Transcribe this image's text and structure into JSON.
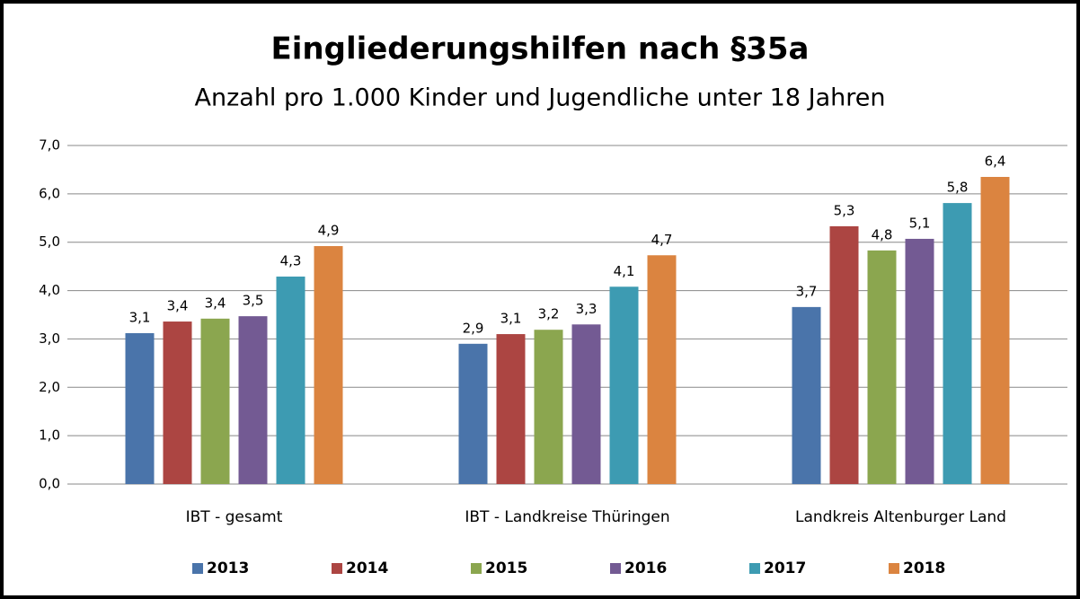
{
  "chart_data": {
    "type": "bar",
    "title": "Eingliederungshilfen nach §35a",
    "subtitle": "Anzahl pro 1.000 Kinder und Jugendliche unter 18 Jahren",
    "categories": [
      "IBT - gesamt",
      "IBT - Landkreise Thüringen",
      "Landkreis Altenburger Land"
    ],
    "series": [
      {
        "name": "2013",
        "color": "#4a74aa",
        "values": [
          3.12,
          2.9,
          3.66
        ],
        "value_labels": [
          "3,1",
          "2,9",
          "3,7"
        ]
      },
      {
        "name": "2014",
        "color": "#ac4542",
        "values": [
          3.36,
          3.1,
          5.33
        ],
        "value_labels": [
          "3,4",
          "3,1",
          "5,3"
        ]
      },
      {
        "name": "2015",
        "color": "#8ba64f",
        "values": [
          3.42,
          3.19,
          4.83
        ],
        "value_labels": [
          "3,4",
          "3,2",
          "4,8"
        ]
      },
      {
        "name": "2016",
        "color": "#735a93",
        "values": [
          3.47,
          3.3,
          5.07
        ],
        "value_labels": [
          "3,5",
          "3,3",
          "5,1"
        ]
      },
      {
        "name": "2017",
        "color": "#3d9bb2",
        "values": [
          4.29,
          4.08,
          5.81
        ],
        "value_labels": [
          "4,3",
          "4,1",
          "5,8"
        ]
      },
      {
        "name": "2018",
        "color": "#db8440",
        "values": [
          4.92,
          4.73,
          6.35
        ],
        "value_labels": [
          "4,9",
          "4,7",
          "6,4"
        ]
      }
    ],
    "ylim": [
      0,
      7
    ],
    "yticks": [
      {
        "value": 0,
        "label": "0,0"
      },
      {
        "value": 1,
        "label": "1,0"
      },
      {
        "value": 2,
        "label": "2,0"
      },
      {
        "value": 3,
        "label": "3,0"
      },
      {
        "value": 4,
        "label": "4,0"
      },
      {
        "value": 5,
        "label": "5,0"
      },
      {
        "value": 6,
        "label": "6,0"
      },
      {
        "value": 7,
        "label": "7,0"
      }
    ],
    "grid": true,
    "legend": "bottom"
  }
}
